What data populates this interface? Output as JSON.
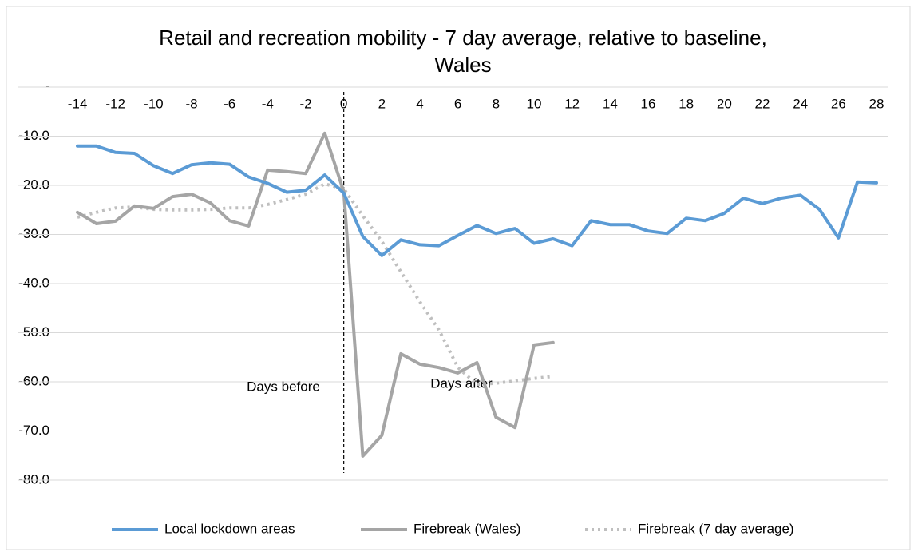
{
  "chart_data": {
    "type": "line",
    "title": "Retail and recreation mobility - 7 day average, relative to baseline, Wales",
    "x": [
      -14,
      -13,
      -12,
      -11,
      -10,
      -9,
      -8,
      -7,
      -6,
      -5,
      -4,
      -3,
      -2,
      -1,
      0,
      1,
      2,
      3,
      4,
      5,
      6,
      7,
      8,
      9,
      10,
      11,
      12,
      13,
      14,
      15,
      16,
      17,
      18,
      19,
      20,
      21,
      22,
      23,
      24,
      25,
      26,
      27,
      28
    ],
    "xlim": [
      -14,
      28
    ],
    "xticks": [
      -14,
      -12,
      -10,
      -8,
      -6,
      -4,
      -2,
      0,
      2,
      4,
      6,
      8,
      10,
      12,
      14,
      16,
      18,
      20,
      22,
      24,
      26,
      28
    ],
    "ylim": [
      -80,
      0
    ],
    "yticks": [
      {
        "value": 0,
        "label": "-"
      },
      {
        "value": -10,
        "label": "-10.0"
      },
      {
        "value": -20,
        "label": "-20.0"
      },
      {
        "value": -30,
        "label": "-30.0"
      },
      {
        "value": -40,
        "label": "-40.0"
      },
      {
        "value": -50,
        "label": "-50.0"
      },
      {
        "value": -60,
        "label": "-60.0"
      },
      {
        "value": -70,
        "label": "-70.0"
      },
      {
        "value": -80,
        "label": "-80.0"
      }
    ],
    "grid": true,
    "legend": "bottom",
    "annotations": [
      "Days before",
      "Days after"
    ],
    "series": [
      {
        "name": "Local lockdown areas",
        "color": "#5b9bd5",
        "style": "solid",
        "values": [
          -12.0,
          -12.0,
          -13.3,
          -13.5,
          -16.0,
          -17.6,
          -15.8,
          -15.4,
          -15.7,
          -18.3,
          -19.6,
          -21.4,
          -21.0,
          -17.9,
          -21.6,
          -30.4,
          -34.3,
          -31.1,
          -32.1,
          -32.3,
          -30.2,
          -28.2,
          -29.8,
          -28.8,
          -31.8,
          -30.9,
          -32.3,
          -27.2,
          -28.0,
          -28.0,
          -29.3,
          -29.8,
          -26.7,
          -27.2,
          -25.7,
          -22.6,
          -23.7,
          -22.6,
          -22.0,
          -24.9,
          -30.7,
          -19.3,
          -19.5
        ]
      },
      {
        "name": "Firebreak (Wales)",
        "color": "#a5a5a5",
        "style": "solid",
        "values": [
          -25.5,
          -27.8,
          -27.3,
          -24.2,
          -24.7,
          -22.3,
          -21.8,
          -23.6,
          -27.2,
          -28.3,
          -16.9,
          -17.2,
          -17.6,
          -9.4,
          -21.3,
          -75.1,
          -70.9,
          -54.3,
          -56.4,
          -57.1,
          -58.2,
          -56.1,
          -67.2,
          -69.3,
          -52.5,
          -52.0,
          null,
          null,
          null,
          null,
          null,
          null,
          null,
          null,
          null,
          null,
          null,
          null,
          null,
          null,
          null,
          null,
          null
        ]
      },
      {
        "name": "Firebreak (7 day average)",
        "color": "#bfbfbf",
        "style": "dotted",
        "values": [
          -26.5,
          -25.5,
          -24.6,
          -24.4,
          -24.9,
          -25.0,
          -25.0,
          -24.9,
          -24.6,
          -24.6,
          -23.9,
          -22.9,
          -21.8,
          -19.7,
          -20.7,
          -26.2,
          -31.4,
          -37.6,
          -43.7,
          -49.4,
          -57.1,
          -60.5,
          -60.3,
          -59.8,
          -59.3,
          -58.9,
          null,
          null,
          null,
          null,
          null,
          null,
          null,
          null,
          null,
          null,
          null,
          null,
          null,
          null,
          null,
          null,
          null
        ]
      }
    ]
  }
}
